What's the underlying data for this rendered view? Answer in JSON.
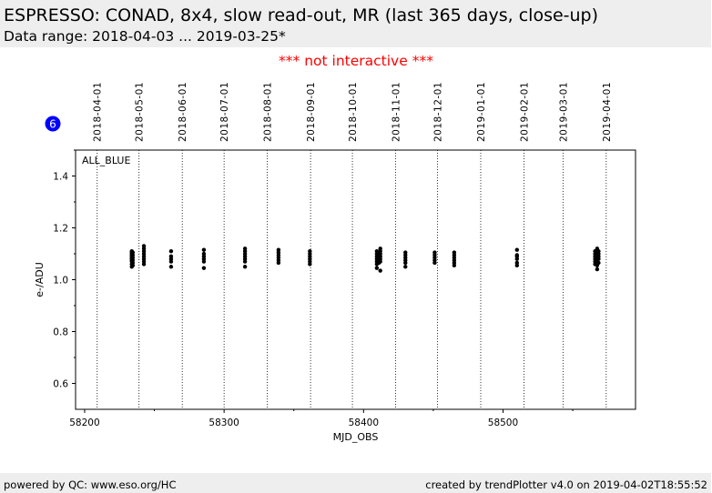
{
  "header": {
    "title": "ESPRESSO: CONAD, 8x4, slow read-out, MR (last 365 days, close-up)",
    "subtitle": "Data range: 2018-04-03 ... 2019-03-25*"
  },
  "notice": "*** not interactive ***",
  "badge": "6",
  "footer": {
    "left": "powered by QC: www.eso.org/HC",
    "right": "created by trendPlotter v4.0 on 2019-04-02T18:55:52"
  },
  "colors": {
    "badge": "#0000ff",
    "notice": "#ff0000",
    "points": "#000000"
  },
  "chart_data": {
    "type": "scatter",
    "title": "",
    "xlabel": "MJD_OBS",
    "ylabel": "e-/ADU",
    "xlim": [
      58193.5,
      58595
    ],
    "ylim": [
      0.5,
      1.5
    ],
    "xticks": [
      58200,
      58300,
      58400,
      58500
    ],
    "xtick_labels": [
      "58200",
      "58300",
      "58400",
      "58500"
    ],
    "yticks": [
      0.6,
      0.8,
      1.0,
      1.2,
      1.4
    ],
    "ytick_labels": [
      "0.6",
      "0.8",
      "1.0",
      "1.2",
      "1.4"
    ],
    "legend_label": "ALL_BLUE",
    "legend_placement": "top-left",
    "date_markers": [
      {
        "mjd": 58209,
        "label": "2018-04-01"
      },
      {
        "mjd": 58239,
        "label": "2018-05-01"
      },
      {
        "mjd": 58270,
        "label": "2018-06-01"
      },
      {
        "mjd": 58300,
        "label": "2018-07-01"
      },
      {
        "mjd": 58331,
        "label": "2018-08-01"
      },
      {
        "mjd": 58362,
        "label": "2018-09-01"
      },
      {
        "mjd": 58392,
        "label": "2018-10-01"
      },
      {
        "mjd": 58423,
        "label": "2018-11-01"
      },
      {
        "mjd": 58453,
        "label": "2018-12-01"
      },
      {
        "mjd": 58484,
        "label": "2019-01-01"
      },
      {
        "mjd": 58515,
        "label": "2019-02-01"
      },
      {
        "mjd": 58543,
        "label": "2019-03-01"
      },
      {
        "mjd": 58574,
        "label": "2019-04-01"
      }
    ],
    "series": [
      {
        "name": "ALL_BLUE",
        "points": [
          {
            "x": 58233.8,
            "y": [
              1.05,
              1.06,
              1.07,
              1.075,
              1.08,
              1.085,
              1.09,
              1.095,
              1.1,
              1.105,
              1.11
            ]
          },
          {
            "x": 58234.5,
            "y": [
              1.055,
              1.065,
              1.075,
              1.085,
              1.095,
              1.105
            ]
          },
          {
            "x": 58242.5,
            "y": [
              1.06,
              1.07,
              1.08,
              1.09,
              1.1,
              1.11,
              1.12,
              1.13
            ]
          },
          {
            "x": 58262,
            "y": [
              1.05,
              1.07,
              1.08,
              1.09,
              1.11
            ]
          },
          {
            "x": 58285.5,
            "y": [
              1.045,
              1.07,
              1.08,
              1.09,
              1.1,
              1.115
            ]
          },
          {
            "x": 58315,
            "y": [
              1.05,
              1.07,
              1.08,
              1.09,
              1.1,
              1.11,
              1.12
            ]
          },
          {
            "x": 58339,
            "y": [
              1.065,
              1.075,
              1.085,
              1.095,
              1.105,
              1.115
            ]
          },
          {
            "x": 58361.5,
            "y": [
              1.06,
              1.07,
              1.08,
              1.09,
              1.1,
              1.11
            ]
          },
          {
            "x": 58409.5,
            "y": [
              1.045,
              1.06,
              1.07,
              1.08,
              1.09,
              1.1,
              1.11
            ]
          },
          {
            "x": 58411,
            "y": [
              1.065,
              1.075,
              1.085,
              1.095,
              1.105
            ]
          },
          {
            "x": 58412,
            "y": [
              1.035,
              1.07,
              1.08,
              1.09,
              1.1,
              1.11,
              1.12
            ]
          },
          {
            "x": 58430,
            "y": [
              1.05,
              1.065,
              1.075,
              1.085,
              1.095,
              1.105
            ]
          },
          {
            "x": 58451,
            "y": [
              1.065,
              1.075,
              1.085,
              1.095,
              1.105
            ]
          },
          {
            "x": 58465,
            "y": [
              1.055,
              1.065,
              1.075,
              1.085,
              1.095,
              1.105
            ]
          },
          {
            "x": 58510,
            "y": [
              1.055,
              1.065,
              1.08,
              1.09,
              1.095,
              1.115
            ]
          },
          {
            "x": 58566,
            "y": [
              1.06,
              1.07,
              1.08,
              1.09,
              1.1,
              1.11
            ]
          },
          {
            "x": 58567.5,
            "y": [
              1.04,
              1.055,
              1.065,
              1.075,
              1.085,
              1.095,
              1.105,
              1.115,
              1.12
            ]
          },
          {
            "x": 58568.5,
            "y": [
              1.065,
              1.08,
              1.09,
              1.1,
              1.11
            ]
          }
        ]
      }
    ]
  }
}
